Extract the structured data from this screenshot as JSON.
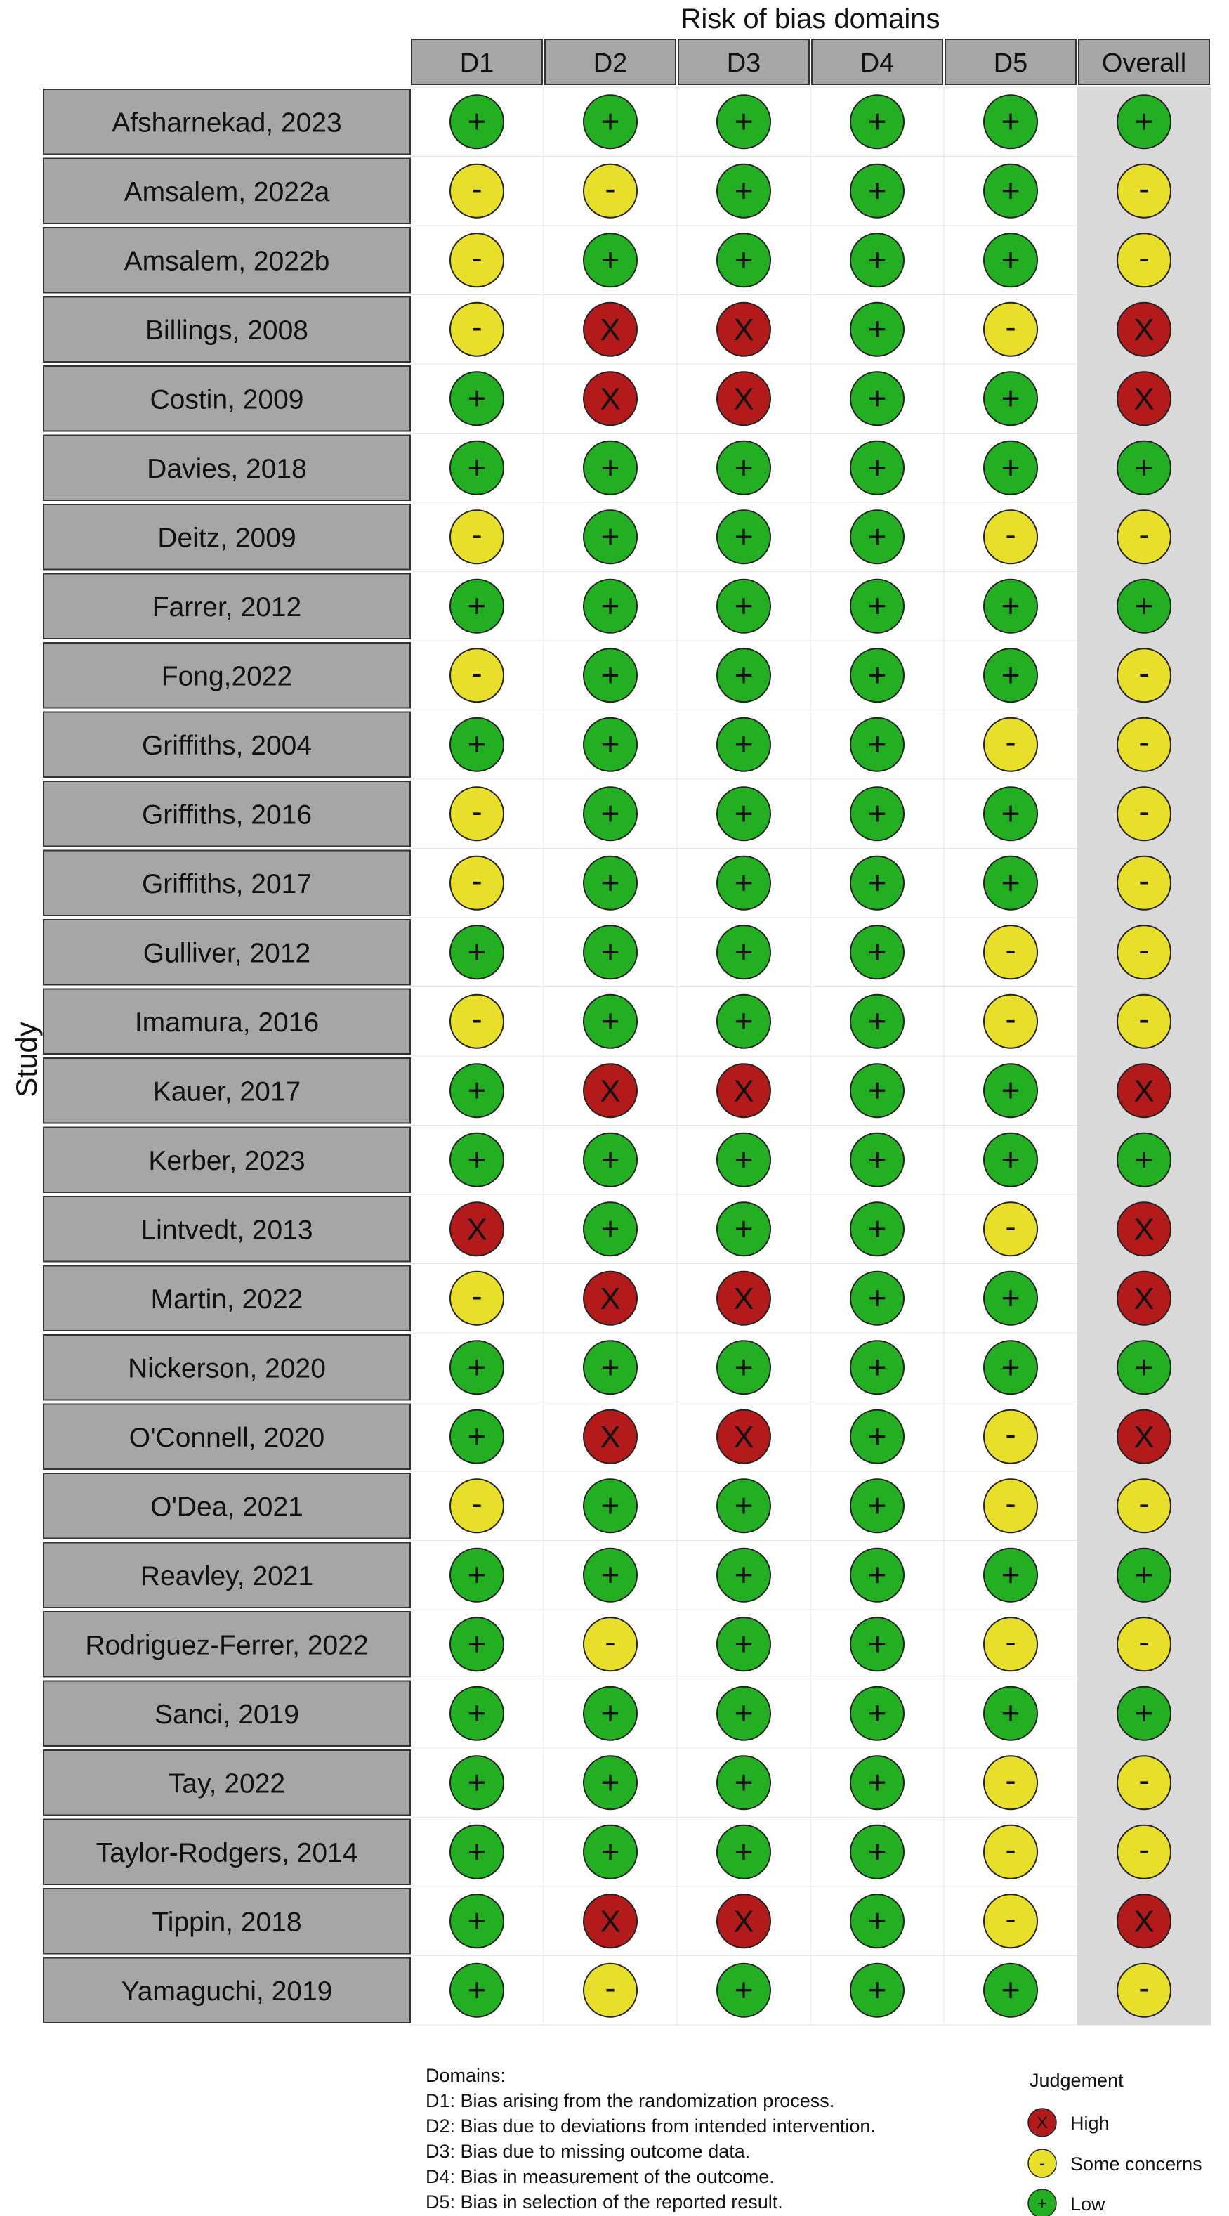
{
  "chart_data": {
    "type": "table",
    "title": "Risk of bias domains",
    "ylabel": "Study",
    "columns": [
      "D1",
      "D2",
      "D3",
      "D4",
      "D5",
      "Overall"
    ],
    "studies": [
      {
        "name": "Afsharnekad, 2023",
        "judgements": [
          "low",
          "low",
          "low",
          "low",
          "low",
          "low"
        ]
      },
      {
        "name": "Amsalem, 2022a",
        "judgements": [
          "some",
          "some",
          "low",
          "low",
          "low",
          "some"
        ]
      },
      {
        "name": "Amsalem, 2022b",
        "judgements": [
          "some",
          "low",
          "low",
          "low",
          "low",
          "some"
        ]
      },
      {
        "name": "Billings, 2008",
        "judgements": [
          "some",
          "high",
          "high",
          "low",
          "some",
          "high"
        ]
      },
      {
        "name": "Costin, 2009",
        "judgements": [
          "low",
          "high",
          "high",
          "low",
          "low",
          "high"
        ]
      },
      {
        "name": "Davies, 2018",
        "judgements": [
          "low",
          "low",
          "low",
          "low",
          "low",
          "low"
        ]
      },
      {
        "name": "Deitz, 2009",
        "judgements": [
          "some",
          "low",
          "low",
          "low",
          "some",
          "some"
        ]
      },
      {
        "name": "Farrer, 2012",
        "judgements": [
          "low",
          "low",
          "low",
          "low",
          "low",
          "low"
        ]
      },
      {
        "name": "Fong,2022",
        "judgements": [
          "some",
          "low",
          "low",
          "low",
          "low",
          "some"
        ]
      },
      {
        "name": "Griffiths, 2004",
        "judgements": [
          "low",
          "low",
          "low",
          "low",
          "some",
          "some"
        ]
      },
      {
        "name": "Griffiths, 2016",
        "judgements": [
          "some",
          "low",
          "low",
          "low",
          "low",
          "some"
        ]
      },
      {
        "name": "Griffiths, 2017",
        "judgements": [
          "some",
          "low",
          "low",
          "low",
          "low",
          "some"
        ]
      },
      {
        "name": "Gulliver, 2012",
        "judgements": [
          "low",
          "low",
          "low",
          "low",
          "some",
          "some"
        ]
      },
      {
        "name": "Imamura, 2016",
        "judgements": [
          "some",
          "low",
          "low",
          "low",
          "some",
          "some"
        ]
      },
      {
        "name": "Kauer, 2017",
        "judgements": [
          "low",
          "high",
          "high",
          "low",
          "low",
          "high"
        ]
      },
      {
        "name": "Kerber, 2023",
        "judgements": [
          "low",
          "low",
          "low",
          "low",
          "low",
          "low"
        ]
      },
      {
        "name": "Lintvedt, 2013",
        "judgements": [
          "high",
          "low",
          "low",
          "low",
          "some",
          "high"
        ]
      },
      {
        "name": "Martin, 2022",
        "judgements": [
          "some",
          "high",
          "high",
          "low",
          "low",
          "high"
        ]
      },
      {
        "name": "Nickerson, 2020",
        "judgements": [
          "low",
          "low",
          "low",
          "low",
          "low",
          "low"
        ]
      },
      {
        "name": "O'Connell, 2020",
        "judgements": [
          "low",
          "high",
          "high",
          "low",
          "some",
          "high"
        ]
      },
      {
        "name": "O'Dea, 2021",
        "judgements": [
          "some",
          "low",
          "low",
          "low",
          "some",
          "some"
        ]
      },
      {
        "name": "Reavley, 2021",
        "judgements": [
          "low",
          "low",
          "low",
          "low",
          "low",
          "low"
        ]
      },
      {
        "name": "Rodriguez-Ferrer, 2022",
        "judgements": [
          "low",
          "some",
          "low",
          "low",
          "some",
          "some"
        ]
      },
      {
        "name": "Sanci, 2019",
        "judgements": [
          "low",
          "low",
          "low",
          "low",
          "low",
          "low"
        ]
      },
      {
        "name": "Tay, 2022",
        "judgements": [
          "low",
          "low",
          "low",
          "low",
          "some",
          "some"
        ]
      },
      {
        "name": "Taylor-Rodgers, 2014",
        "judgements": [
          "low",
          "low",
          "low",
          "low",
          "some",
          "some"
        ]
      },
      {
        "name": "Tippin, 2018",
        "judgements": [
          "low",
          "high",
          "high",
          "low",
          "some",
          "high"
        ]
      },
      {
        "name": "Yamaguchi, 2019",
        "judgements": [
          "low",
          "some",
          "low",
          "low",
          "low",
          "some"
        ]
      }
    ],
    "judgement_styles": {
      "low": {
        "symbol": "+",
        "color": "#22b022"
      },
      "some": {
        "symbol": "-",
        "color": "#e8df2a"
      },
      "high": {
        "symbol": "X",
        "color": "#b31b1b"
      }
    },
    "domains_legend": {
      "heading": "Domains:",
      "items": [
        "D1: Bias arising from the randomization process.",
        "D2: Bias due to deviations from intended intervention.",
        "D3: Bias due to missing outcome data.",
        "D4: Bias in measurement of the outcome.",
        "D5: Bias in selection of the reported result."
      ]
    },
    "judgement_legend": {
      "heading": "Judgement",
      "items": [
        {
          "key": "high",
          "label": "High"
        },
        {
          "key": "some",
          "label": "Some concerns"
        },
        {
          "key": "low",
          "label": "Low"
        }
      ]
    },
    "colors": {
      "header_fill": "#a6a6a6",
      "label_fill": "#a6a6a6",
      "overall_fill": "#d9d9d9",
      "cell_fill": "#ffffff",
      "border": "#333333"
    }
  }
}
